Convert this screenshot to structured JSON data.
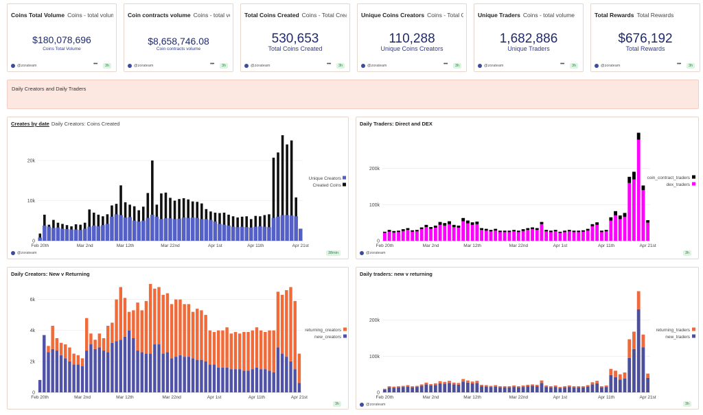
{
  "kpis": [
    {
      "title": "Coins Total Volume",
      "subtitle": "Coins - total volume",
      "value": "$180,078,696",
      "label": "Coins Total Volume",
      "handle": "@zorateam",
      "dots": "•••",
      "badge": "3h"
    },
    {
      "title": "Coin contracts volume",
      "subtitle": "Coins - total volume",
      "value": "$8,658,746.08",
      "label": "Coin contracts volume",
      "handle": "@zorateam",
      "dots": "•••",
      "badge": "3h"
    },
    {
      "title": "Total Coins Created",
      "subtitle": "Coins - Total Created",
      "value": "530,653",
      "label": "Total Coins Created",
      "handle": "@zorateam",
      "dots": "•••",
      "badge": "3h"
    },
    {
      "title": "Unique Coins Creators",
      "subtitle": "Coins - Total Created",
      "value": "110,288",
      "label": "Unique Coins Creators",
      "handle": "@zorateam",
      "dots": "•••",
      "badge": "3h"
    },
    {
      "title": "Unique Traders",
      "subtitle": "Coins - total volume",
      "value": "1,682,886",
      "label": "Unique Traders",
      "handle": "@zorateam",
      "dots": "•••",
      "badge": "3h"
    },
    {
      "title": "Total Rewards",
      "subtitle": "Total Rewards",
      "value": "$676,192",
      "label": "Total Rewards",
      "handle": "@zorateam",
      "dots": "•••",
      "badge": "3h"
    }
  ],
  "banner": {
    "text": "Daily Creators and Daily Traders"
  },
  "chart_data": [
    {
      "type": "bar",
      "title": "Creates by date",
      "subtitle": "Daily Creators: Coins Created",
      "handle": "@zorateam",
      "badge": "38min",
      "x_ticks": [
        "Feb 20th",
        "Mar 2nd",
        "Mar 12th",
        "Mar 22nd",
        "Apr 1st",
        "Apr 11th",
        "Apr 21st"
      ],
      "y_ticks": [
        "0",
        "10k",
        "20k"
      ],
      "ylim": [
        0,
        27000
      ],
      "series": [
        {
          "name": "Unique Creators",
          "color": "#5560c6",
          "values": [
            800,
            3800,
            3500,
            3200,
            3300,
            3000,
            2900,
            2800,
            2800,
            2700,
            3000,
            3500,
            3800,
            3600,
            3900,
            4200,
            6000,
            6600,
            6400,
            5800,
            5900,
            5000,
            4800,
            5000,
            5700,
            6500,
            6000,
            5400,
            5600,
            5600,
            5400,
            5500,
            5800,
            5700,
            5800,
            5700,
            5400,
            5400,
            5200,
            4800,
            4200,
            4000,
            3800,
            3500,
            3400,
            3500,
            3400,
            3300,
            3500,
            3600,
            3500,
            3400,
            5700,
            6000,
            6400,
            6400,
            6300,
            6100,
            3000
          ]
        },
        {
          "name": "Created Coins",
          "color": "#111111",
          "values": [
            1800,
            6500,
            4000,
            5200,
            4500,
            4200,
            3900,
            3600,
            4100,
            4000,
            4500,
            7800,
            7000,
            6500,
            6100,
            6600,
            8800,
            9200,
            13800,
            9600,
            9000,
            8600,
            7600,
            8500,
            11900,
            20000,
            9000,
            11800,
            12000,
            10700,
            10000,
            10400,
            10600,
            10300,
            9800,
            9700,
            9300,
            7900,
            7300,
            7000,
            6900,
            7000,
            6500,
            6100,
            5800,
            6000,
            6100,
            5400,
            6200,
            6100,
            6400,
            6600,
            20700,
            22000,
            26300,
            24000,
            25000,
            10800,
            3000
          ]
        }
      ]
    },
    {
      "type": "bar",
      "title": "Daily Traders: Direct and DEX",
      "handle": "@zorateam",
      "badge": "3h",
      "x_ticks": [
        "Feb 20th",
        "Mar 2nd",
        "Mar 12th",
        "Mar 22nd",
        "Apr 1st",
        "Apr 11th",
        "Apr 21st"
      ],
      "y_ticks": [
        "0",
        "100k",
        "200k"
      ],
      "ylim": [
        0,
        300000
      ],
      "series": [
        {
          "name": "dex_traders",
          "color": "#ff00ff",
          "values": [
            22000,
            25000,
            23000,
            24000,
            27000,
            30000,
            25000,
            26000,
            32000,
            38000,
            33000,
            36000,
            44000,
            42000,
            46000,
            38000,
            36000,
            54000,
            48000,
            44000,
            46000,
            30000,
            28000,
            26000,
            28000,
            24000,
            24000,
            24000,
            26000,
            24000,
            27000,
            30000,
            32000,
            30000,
            46000,
            26000,
            24000,
            26000,
            22000,
            24000,
            26000,
            24000,
            24000,
            25000,
            28000,
            40000,
            44000,
            24000,
            26000,
            56000,
            70000,
            60000,
            66000,
            160000,
            170000,
            280000,
            140000,
            50000
          ]
        },
        {
          "name": "coin_contract_traders",
          "color": "#000000",
          "values": [
            3000,
            5000,
            4000,
            4000,
            5000,
            5000,
            4000,
            4000,
            5000,
            6000,
            5000,
            6000,
            8000,
            7000,
            8000,
            6000,
            6000,
            9000,
            8000,
            7000,
            7000,
            5000,
            5000,
            4000,
            5000,
            4000,
            4000,
            4000,
            4000,
            4000,
            5000,
            5000,
            5000,
            5000,
            6000,
            4000,
            4000,
            4000,
            3000,
            4000,
            4000,
            4000,
            4000,
            4000,
            5000,
            6000,
            7000,
            4000,
            4000,
            9000,
            12000,
            10000,
            11000,
            17000,
            21000,
            19000,
            13000,
            7000
          ]
        }
      ]
    },
    {
      "type": "bar",
      "title": "Daily Creators: New v Returning",
      "handle": "@zorateam",
      "badge": "3h",
      "x_ticks": [
        "Feb 20th",
        "Mar 2nd",
        "Mar 12th",
        "Mar 22nd",
        "Apr 1st",
        "Apr 11th",
        "Apr 21st"
      ],
      "y_ticks": [
        "0",
        "2k",
        "4k",
        "6k"
      ],
      "ylim": [
        0,
        7000
      ],
      "series": [
        {
          "name": "new_creators",
          "color": "#5052a8",
          "values": [
            800,
            3700,
            2600,
            2800,
            2700,
            2400,
            2200,
            2000,
            1800,
            1800,
            1700,
            2700,
            3100,
            2800,
            2900,
            2700,
            2600,
            3200,
            3300,
            3400,
            3600,
            4000,
            3500,
            2700,
            2600,
            2500,
            2500,
            3100,
            3100,
            2500,
            2600,
            2200,
            2300,
            2400,
            2300,
            2300,
            2200,
            2100,
            2100,
            2000,
            1800,
            1800,
            1600,
            1600,
            1600,
            1500,
            1500,
            1500,
            1400,
            1400,
            1500,
            1600,
            1500,
            1500,
            1400,
            1300,
            2900,
            2500,
            2300,
            2000,
            1500,
            600
          ]
        },
        {
          "name": "returning_creators",
          "color": "#f06a3a",
          "values": [
            0,
            0,
            400,
            1500,
            800,
            800,
            900,
            900,
            700,
            600,
            500,
            2100,
            700,
            600,
            900,
            800,
            1700,
            1300,
            2700,
            3400,
            2500,
            1200,
            1800,
            3100,
            2700,
            3400,
            4500,
            3600,
            3700,
            3800,
            3800,
            3500,
            3700,
            3600,
            3400,
            3400,
            3000,
            3300,
            3200,
            3000,
            2200,
            2100,
            2400,
            2400,
            2600,
            2300,
            2400,
            2300,
            2500,
            2500,
            2500,
            2600,
            2500,
            2400,
            2600,
            2700,
            3600,
            3800,
            4300,
            4800,
            4400,
            1900
          ]
        }
      ]
    },
    {
      "type": "bar",
      "title": "Daily traders: new v returning",
      "handle": "@zorateam",
      "badge": "3h",
      "x_ticks": [
        "Feb 20th",
        "Mar 2nd",
        "Mar 12th",
        "Mar 22nd",
        "Apr 1st",
        "Apr 11th",
        "Apr 21st"
      ],
      "y_ticks": [
        "0",
        "100k",
        "200k"
      ],
      "ylim": [
        0,
        300000
      ],
      "series": [
        {
          "name": "new_traders",
          "color": "#4e4f99",
          "values": [
            8000,
            14000,
            13000,
            14000,
            15000,
            16000,
            14000,
            15000,
            18000,
            22000,
            19000,
            20000,
            25000,
            24000,
            26000,
            22000,
            21000,
            30000,
            27000,
            25000,
            26000,
            17000,
            16000,
            15000,
            16000,
            14000,
            14000,
            14000,
            15000,
            14000,
            15000,
            17000,
            18000,
            17000,
            26000,
            15000,
            14000,
            15000,
            12000,
            14000,
            15000,
            14000,
            14000,
            14000,
            16000,
            22000,
            25000,
            14000,
            15000,
            48000,
            42000,
            35000,
            38000,
            95000,
            120000,
            230000,
            125000,
            40000
          ]
        },
        {
          "name": "returning_traders",
          "color": "#ee6a3e",
          "values": [
            2000,
            3000,
            3000,
            3000,
            3000,
            4000,
            3000,
            3000,
            4000,
            5000,
            4000,
            5000,
            6000,
            5000,
            6000,
            5000,
            5000,
            7000,
            6000,
            5000,
            6000,
            4000,
            4000,
            3000,
            4000,
            3000,
            3000,
            3000,
            4000,
            3000,
            4000,
            4000,
            4000,
            4000,
            7000,
            4000,
            3000,
            4000,
            3000,
            3000,
            4000,
            3000,
            3000,
            3000,
            4000,
            6000,
            7000,
            3000,
            4000,
            17000,
            18000,
            15000,
            17000,
            52000,
            48000,
            50000,
            35000,
            12000
          ]
        }
      ]
    }
  ]
}
